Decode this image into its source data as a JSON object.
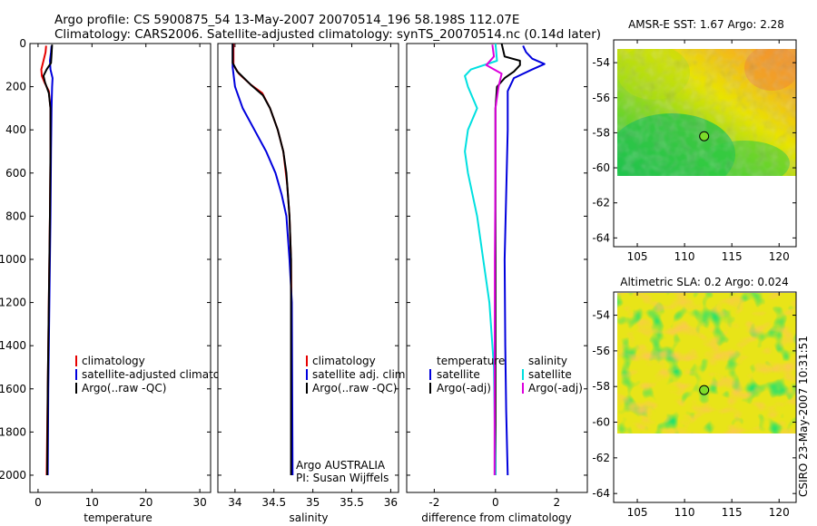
{
  "header": {
    "title_line1": "Argo profile: CS 5900875_54 13-May-2007 20070514_196 58.198S 112.07E",
    "title_line2": "Climatology: CARS2006. Satellite-adjusted climatology: synTS_20070514.nc (0.14d later)"
  },
  "chart_data": [
    {
      "id": "temperature",
      "type": "line",
      "xlabel": "temperature",
      "xlim": [
        -1.5,
        32
      ],
      "ylim": [
        2080,
        0
      ],
      "xticks": [
        0,
        10,
        20,
        30
      ],
      "yticks": [
        0,
        200,
        400,
        600,
        800,
        1000,
        1200,
        1400,
        1600,
        1800,
        2000
      ],
      "legend": [
        "climatology",
        "satellite-adjusted climatology",
        "Argo(..raw -QC)"
      ],
      "series": [
        {
          "name": "climatology",
          "color": "#e60000",
          "points": [
            [
              1.5,
              10
            ],
            [
              1.4,
              40
            ],
            [
              1.0,
              80
            ],
            [
              0.6,
              120
            ],
            [
              0.7,
              150
            ],
            [
              1.2,
              180
            ],
            [
              2.0,
              220
            ],
            [
              2.3,
              300
            ],
            [
              2.3,
              500
            ],
            [
              2.2,
              800
            ],
            [
              2.0,
              1200
            ],
            [
              1.8,
              1600
            ],
            [
              1.6,
              2000
            ]
          ]
        },
        {
          "name": "satellite-adjusted climatology",
          "color": "#0000dd",
          "points": [
            [
              2.5,
              10
            ],
            [
              2.4,
              40
            ],
            [
              2.2,
              80
            ],
            [
              2.3,
              120
            ],
            [
              2.7,
              160
            ],
            [
              2.6,
              200
            ],
            [
              2.5,
              300
            ],
            [
              2.4,
              500
            ],
            [
              2.3,
              800
            ],
            [
              2.1,
              1200
            ],
            [
              1.9,
              1600
            ],
            [
              1.8,
              2000
            ]
          ]
        },
        {
          "name": "Argo(..raw -QC)",
          "color": "#000000",
          "points": [
            [
              2.6,
              5
            ],
            [
              2.5,
              50
            ],
            [
              2.4,
              90
            ],
            [
              1.6,
              120
            ],
            [
              1.0,
              150
            ],
            [
              1.3,
              180
            ],
            [
              2.0,
              230
            ],
            [
              2.3,
              300
            ],
            [
              2.3,
              500
            ],
            [
              2.2,
              800
            ],
            [
              2.0,
              1200
            ],
            [
              1.8,
              1600
            ],
            [
              1.7,
              2000
            ]
          ]
        }
      ]
    },
    {
      "id": "salinity",
      "type": "line",
      "xlabel": "salinity",
      "xlim": [
        33.78,
        36.1
      ],
      "ylim": [
        2080,
        0
      ],
      "xticks": [
        34,
        34.5,
        35,
        35.5,
        36
      ],
      "yticks": [
        0,
        200,
        400,
        600,
        800,
        1000,
        1200,
        1400,
        1600,
        1800,
        2000
      ],
      "legend": [
        "climatology",
        "satellite adj. clim.",
        "Argo(..raw -QC)"
      ],
      "annotation": [
        "Argo AUSTRALIA",
        "PI: Susan Wijffels"
      ],
      "series": [
        {
          "name": "climatology",
          "color": "#e60000",
          "points": [
            [
              33.98,
              0
            ],
            [
              33.98,
              100
            ],
            [
              34.05,
              140
            ],
            [
              34.2,
              190
            ],
            [
              34.35,
              230
            ],
            [
              34.45,
              300
            ],
            [
              34.55,
              400
            ],
            [
              34.62,
              500
            ],
            [
              34.67,
              650
            ],
            [
              34.7,
              800
            ],
            [
              34.72,
              1000
            ],
            [
              34.73,
              1400
            ],
            [
              34.73,
              2000
            ]
          ]
        },
        {
          "name": "satellite adj. clim.",
          "color": "#0000dd",
          "points": [
            [
              33.97,
              0
            ],
            [
              33.97,
              110
            ],
            [
              34.0,
              200
            ],
            [
              34.1,
              300
            ],
            [
              34.25,
              400
            ],
            [
              34.4,
              500
            ],
            [
              34.52,
              600
            ],
            [
              34.6,
              700
            ],
            [
              34.66,
              800
            ],
            [
              34.7,
              1000
            ],
            [
              34.73,
              1200
            ],
            [
              34.74,
              2000
            ]
          ]
        },
        {
          "name": "Argo(..raw -QC)",
          "color": "#000000",
          "points": [
            [
              33.97,
              0
            ],
            [
              33.97,
              90
            ],
            [
              34.03,
              130
            ],
            [
              34.2,
              190
            ],
            [
              34.36,
              240
            ],
            [
              34.45,
              300
            ],
            [
              34.55,
              400
            ],
            [
              34.62,
              500
            ],
            [
              34.66,
              600
            ],
            [
              34.7,
              800
            ],
            [
              34.72,
              1000
            ],
            [
              34.72,
              1400
            ],
            [
              34.72,
              2000
            ]
          ]
        }
      ]
    },
    {
      "id": "difference",
      "type": "line",
      "xlabel": "difference from climatology",
      "xlim": [
        -2.9,
        3.0
      ],
      "ylim": [
        2080,
        0
      ],
      "xticks": [
        -2,
        0,
        2
      ],
      "yticks": [
        0,
        200,
        400,
        600,
        800,
        1000,
        1200,
        1400,
        1600,
        1800,
        2000
      ],
      "legend_headers": [
        "temperature",
        "salinity"
      ],
      "legend": [
        "satellite",
        "Argo(-adj)",
        "satellite",
        "Argo(-adj)"
      ],
      "series": [
        {
          "name": "temperature satellite",
          "color": "#0000dd",
          "points": [
            [
              0.9,
              10
            ],
            [
              1.0,
              40
            ],
            [
              1.2,
              70
            ],
            [
              1.6,
              95
            ],
            [
              1.2,
              120
            ],
            [
              0.6,
              160
            ],
            [
              0.4,
              220
            ],
            [
              0.4,
              400
            ],
            [
              0.35,
              700
            ],
            [
              0.3,
              1000
            ],
            [
              0.32,
              1400
            ],
            [
              0.35,
              1700
            ],
            [
              0.4,
              2000
            ]
          ]
        },
        {
          "name": "temperature Argo(-adj)",
          "color": "#000000",
          "points": [
            [
              0.2,
              0
            ],
            [
              0.3,
              60
            ],
            [
              0.8,
              80
            ],
            [
              0.8,
              100
            ],
            [
              0.6,
              130
            ],
            [
              0.3,
              160
            ],
            [
              0.05,
              200
            ],
            [
              0.0,
              300
            ],
            [
              0.0,
              600
            ],
            [
              0.0,
              1000
            ],
            [
              0.0,
              1400
            ],
            [
              0.0,
              2000
            ]
          ]
        },
        {
          "name": "salinity satellite",
          "color": "#00e0e0",
          "points": [
            [
              0.0,
              0
            ],
            [
              0.05,
              80
            ],
            [
              -0.8,
              120
            ],
            [
              -1.0,
              150
            ],
            [
              -0.9,
              200
            ],
            [
              -0.6,
              300
            ],
            [
              -0.9,
              400
            ],
            [
              -1.0,
              500
            ],
            [
              -0.9,
              600
            ],
            [
              -0.6,
              800
            ],
            [
              -0.4,
              1000
            ],
            [
              -0.2,
              1200
            ],
            [
              -0.05,
              1500
            ],
            [
              0.0,
              2000
            ]
          ]
        },
        {
          "name": "salinity Argo(-adj)",
          "color": "#dd00dd",
          "points": [
            [
              -0.1,
              5
            ],
            [
              -0.05,
              60
            ],
            [
              -0.3,
              100
            ],
            [
              0.2,
              140
            ],
            [
              0.1,
              200
            ],
            [
              0.0,
              300
            ],
            [
              0.0,
              600
            ],
            [
              -0.02,
              1000
            ],
            [
              -0.03,
              2000
            ]
          ]
        }
      ]
    },
    {
      "id": "sst-map",
      "type": "heatmap",
      "title": "AMSR-E SST: 1.67 Argo: 2.28",
      "xlim": [
        102.5,
        121.8
      ],
      "ylim": [
        -64.5,
        -52.7
      ],
      "xticks": [
        105,
        110,
        115,
        120
      ],
      "yticks": [
        -54,
        -56,
        -58,
        -60,
        -62,
        -64
      ],
      "data_extent_lat": [
        -60,
        -52.7
      ],
      "marker": {
        "lon": 112.07,
        "lat": -58.198
      }
    },
    {
      "id": "sla-map",
      "type": "heatmap",
      "title": "Altimetric SLA: 0.2 Argo: 0.024",
      "xlim": [
        102.5,
        121.8
      ],
      "ylim": [
        -64.5,
        -52.7
      ],
      "xticks": [
        105,
        110,
        115,
        120
      ],
      "yticks": [
        -54,
        -56,
        -58,
        -60,
        -62,
        -64
      ],
      "data_extent_lat": [
        -60,
        -52.7
      ],
      "marker": {
        "lon": 112.07,
        "lat": -58.198
      }
    }
  ],
  "footer": {
    "credit": "CSIRO 23-May-2007 10:31:51"
  }
}
